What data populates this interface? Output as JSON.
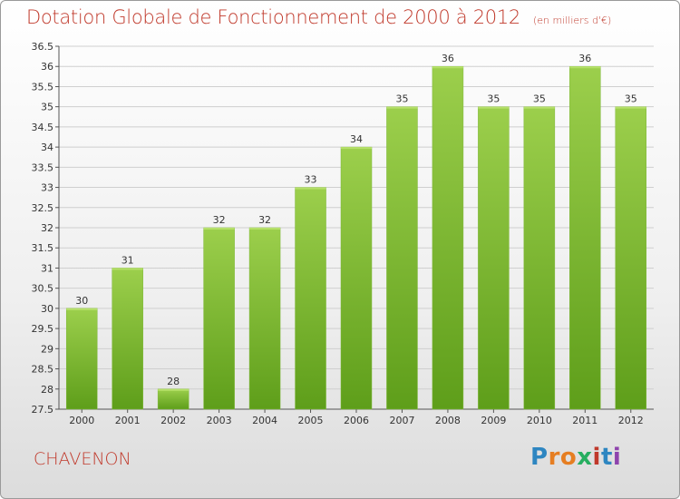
{
  "header": {
    "title": "Dotation Globale de Fonctionnement de 2000 à 2012",
    "unit": "(en milliers d'€)"
  },
  "footer": {
    "commune": "CHAVENON",
    "logo": "Proxiti"
  },
  "colors": {
    "title": "#c0392b",
    "bar_top": "#9ccf4c",
    "bar_bottom": "#5e9e1a",
    "grid": "#cfcfcf"
  },
  "chart_data": {
    "type": "bar",
    "title": "Dotation Globale de Fonctionnement de 2000 à 2012",
    "subtitle": "(en milliers d'€)",
    "xlabel": "",
    "ylabel": "",
    "categories": [
      "2000",
      "2001",
      "2002",
      "2003",
      "2004",
      "2005",
      "2006",
      "2007",
      "2008",
      "2009",
      "2010",
      "2011",
      "2012"
    ],
    "values": [
      30,
      31,
      28,
      32,
      32,
      33,
      34,
      35,
      36,
      35,
      35,
      36,
      35
    ],
    "ylim": [
      27.5,
      36.5
    ],
    "yticks": [
      "27.5",
      "28",
      "28.5",
      "29",
      "29.5",
      "30",
      "30.5",
      "31",
      "31.5",
      "32",
      "32.5",
      "33",
      "33.5",
      "34",
      "34.5",
      "35",
      "35.5",
      "36",
      "36.5"
    ],
    "grid": true,
    "data_labels": true
  }
}
